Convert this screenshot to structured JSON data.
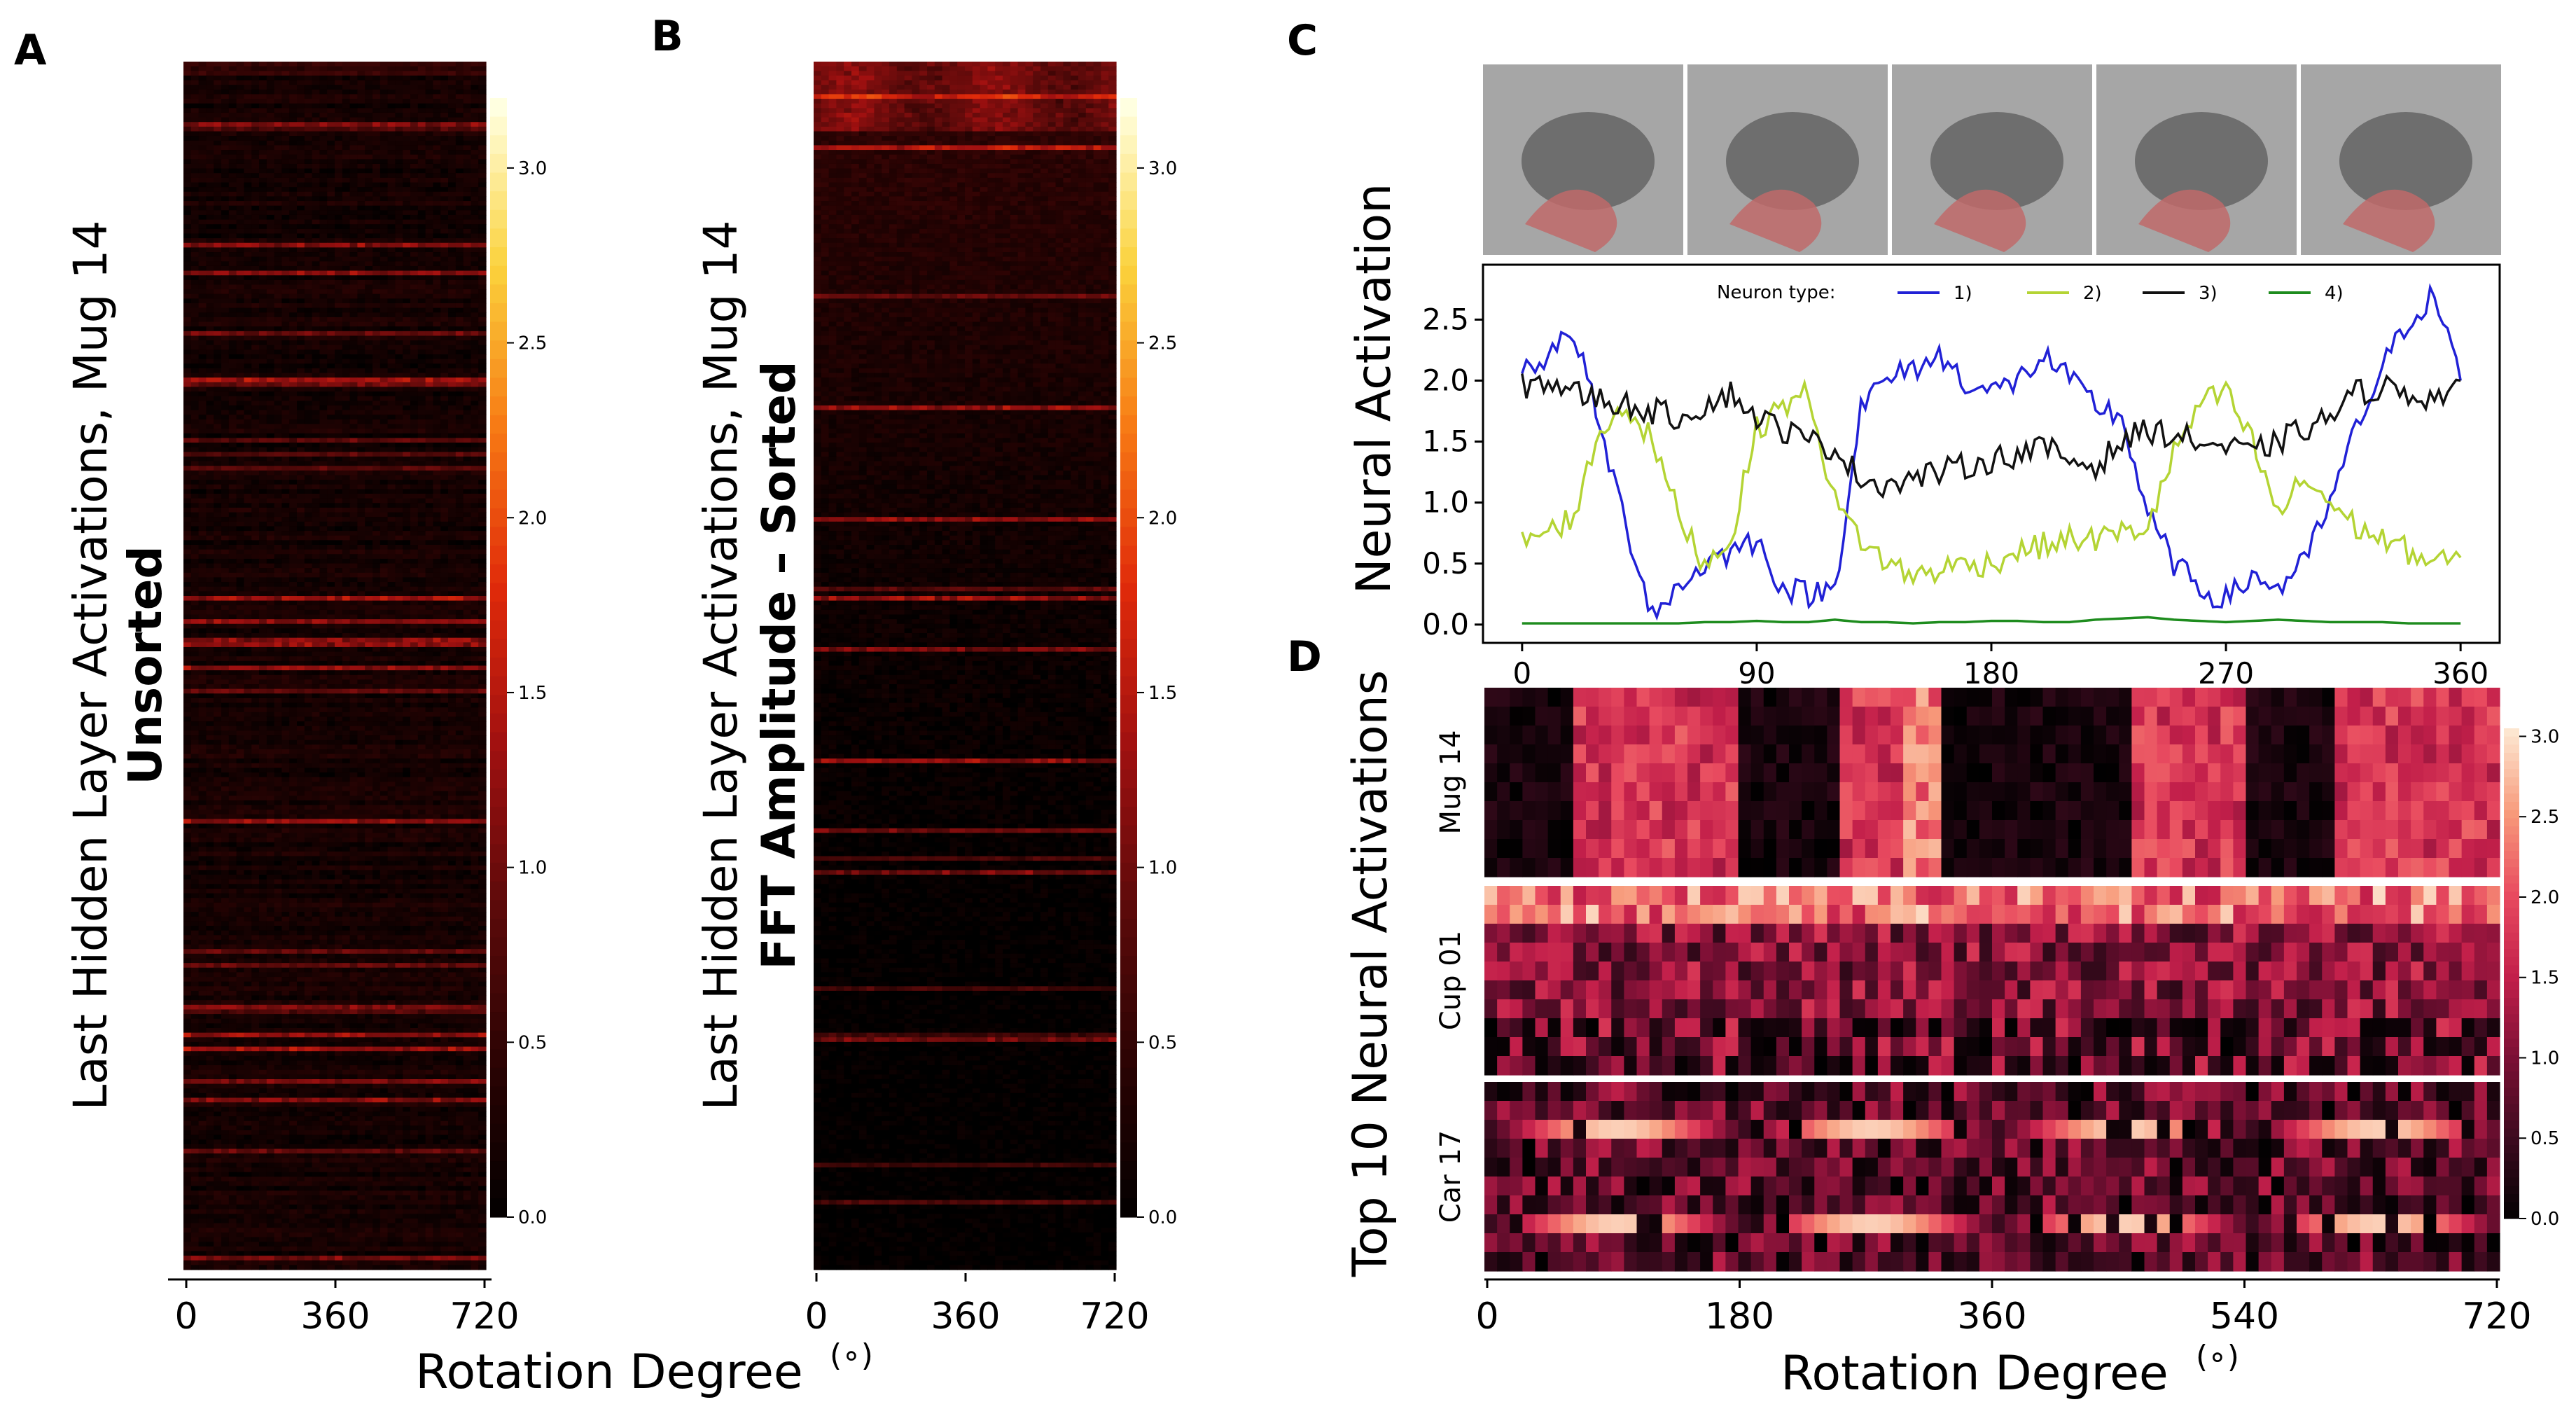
{
  "panel_letters": {
    "a": "A",
    "b": "B",
    "c": "C",
    "d": "D"
  },
  "colors": {
    "background": "#ffffff",
    "hot_cmap": [
      "#000000",
      "#2a0303",
      "#5c0a0a",
      "#a01010",
      "#e02a0a",
      "#f77a14",
      "#fbd23c",
      "#ffffe0"
    ],
    "rdpu_cmap": [
      "#000000",
      "#3b0a1e",
      "#7a0f34",
      "#c21f4a",
      "#e84a5f",
      "#f7997a",
      "#fde6d0"
    ],
    "series": {
      "1)": "#2121d6",
      "2)": "#b4d434",
      "3)": "#111111",
      "4)": "#1e8c1e"
    }
  },
  "chart_data": [
    {
      "id": "A",
      "type": "heatmap",
      "ylabel_line1": "Last Hidden Layer Activations, Mug 14",
      "ylabel_line2": "Unsorted",
      "xlabel": "Rotation Degree",
      "xlabel_unit": "(∘)",
      "xticks": [
        "0",
        "360",
        "720"
      ],
      "x_range": [
        0,
        720
      ],
      "colorbar_ticks": [
        "0.0",
        "0.5",
        "1.0",
        "1.5",
        "2.0",
        "2.5",
        "3.0"
      ],
      "colorbar_range": [
        0.0,
        3.2
      ],
      "colormap": "hot",
      "rows": 260,
      "sorted": false
    },
    {
      "id": "B",
      "type": "heatmap",
      "ylabel_line1": "Last Hidden Layer Activations, Mug 14",
      "ylabel_line2": "FFT Amplitude – Sorted",
      "xlabel": "",
      "xticks": [
        "0",
        "360",
        "720"
      ],
      "x_range": [
        0,
        720
      ],
      "colorbar_ticks": [
        "0.0",
        "0.5",
        "1.0",
        "1.5",
        "2.0",
        "2.5",
        "3.0"
      ],
      "colorbar_range": [
        0.0,
        3.2
      ],
      "colormap": "hot",
      "rows": 260,
      "sorted": true
    },
    {
      "id": "C",
      "type": "line",
      "ylabel": "Neural Activation",
      "xticks": [
        "0",
        "90",
        "180",
        "270",
        "360"
      ],
      "yticks": [
        "0.0",
        "0.5",
        "1.0",
        "1.5",
        "2.0",
        "2.5"
      ],
      "x_range": [
        -15,
        375
      ],
      "y_range": [
        -0.15,
        2.95
      ],
      "legend_title": "Neuron type:",
      "legend_position": "top",
      "images": 5,
      "series": [
        {
          "name": "1)",
          "x": [
            0,
            10,
            20,
            30,
            40,
            50,
            60,
            70,
            80,
            90,
            100,
            110,
            120,
            130,
            140,
            150,
            160,
            170,
            180,
            190,
            200,
            210,
            220,
            230,
            240,
            250,
            260,
            270,
            280,
            290,
            300,
            310,
            320,
            330,
            340,
            350,
            360
          ],
          "values": [
            2.1,
            2.2,
            2.4,
            1.6,
            0.8,
            0.1,
            0.3,
            0.5,
            0.6,
            0.7,
            0.3,
            0.25,
            0.3,
            1.8,
            2.0,
            2.1,
            2.2,
            2.0,
            1.9,
            2.0,
            2.2,
            2.0,
            1.8,
            1.7,
            0.9,
            0.5,
            0.3,
            0.2,
            0.4,
            0.3,
            0.5,
            1.0,
            1.6,
            2.1,
            2.5,
            2.7,
            2.0
          ]
        },
        {
          "name": "2)",
          "x": [
            0,
            10,
            20,
            30,
            40,
            50,
            60,
            70,
            80,
            90,
            100,
            110,
            120,
            130,
            140,
            150,
            160,
            170,
            180,
            190,
            200,
            210,
            220,
            230,
            240,
            250,
            260,
            270,
            280,
            290,
            300,
            310,
            320,
            330,
            340,
            350,
            360
          ],
          "values": [
            0.7,
            0.75,
            0.9,
            1.6,
            1.8,
            1.5,
            0.9,
            0.5,
            0.7,
            1.6,
            1.8,
            1.9,
            1.0,
            0.7,
            0.5,
            0.4,
            0.45,
            0.5,
            0.5,
            0.6,
            0.65,
            0.7,
            0.7,
            0.75,
            0.8,
            1.4,
            1.8,
            1.9,
            1.5,
            0.9,
            1.2,
            1.0,
            0.8,
            0.7,
            0.6,
            0.5,
            0.55
          ]
        },
        {
          "name": "3)",
          "x": [
            0,
            10,
            20,
            30,
            40,
            50,
            60,
            70,
            80,
            90,
            100,
            110,
            120,
            130,
            140,
            150,
            160,
            170,
            180,
            190,
            200,
            210,
            220,
            230,
            240,
            250,
            260,
            270,
            280,
            290,
            300,
            310,
            320,
            330,
            340,
            350,
            360
          ],
          "values": [
            1.95,
            2.0,
            1.9,
            1.85,
            1.8,
            1.75,
            1.7,
            1.8,
            1.9,
            1.7,
            1.6,
            1.5,
            1.45,
            1.2,
            1.15,
            1.2,
            1.25,
            1.3,
            1.35,
            1.4,
            1.45,
            1.35,
            1.3,
            1.5,
            1.6,
            1.55,
            1.5,
            1.45,
            1.4,
            1.5,
            1.6,
            1.7,
            1.9,
            1.95,
            1.9,
            1.85,
            2.0
          ]
        },
        {
          "name": "4)",
          "x": [
            0,
            10,
            20,
            30,
            40,
            50,
            60,
            70,
            80,
            90,
            100,
            110,
            120,
            130,
            140,
            150,
            160,
            170,
            180,
            190,
            200,
            210,
            220,
            230,
            240,
            250,
            260,
            270,
            280,
            290,
            300,
            310,
            320,
            330,
            340,
            350,
            360
          ],
          "values": [
            0.01,
            0.01,
            0.01,
            0.01,
            0.01,
            0.01,
            0.01,
            0.02,
            0.02,
            0.03,
            0.02,
            0.02,
            0.04,
            0.02,
            0.02,
            0.01,
            0.02,
            0.02,
            0.03,
            0.03,
            0.02,
            0.02,
            0.04,
            0.05,
            0.06,
            0.04,
            0.03,
            0.02,
            0.03,
            0.04,
            0.03,
            0.02,
            0.02,
            0.02,
            0.01,
            0.01,
            0.01
          ]
        }
      ]
    },
    {
      "id": "D",
      "type": "heatmap",
      "ylabel": "Top 10 Neural Activations",
      "xlabel": "Rotation Degree",
      "xlabel_unit": "(∘)",
      "xticks": [
        "0",
        "180",
        "360",
        "540",
        "720"
      ],
      "x_range": [
        0,
        720
      ],
      "groups": [
        "Mug 14",
        "Cup 01",
        "Car 17"
      ],
      "rows_per_group": 10,
      "colorbar_ticks": [
        "0.0",
        "0.5",
        "1.0",
        "1.5",
        "2.0",
        "2.5",
        "3.0"
      ],
      "colorbar_range": [
        0.0,
        3.05
      ],
      "colormap": "RdPu_r"
    }
  ]
}
